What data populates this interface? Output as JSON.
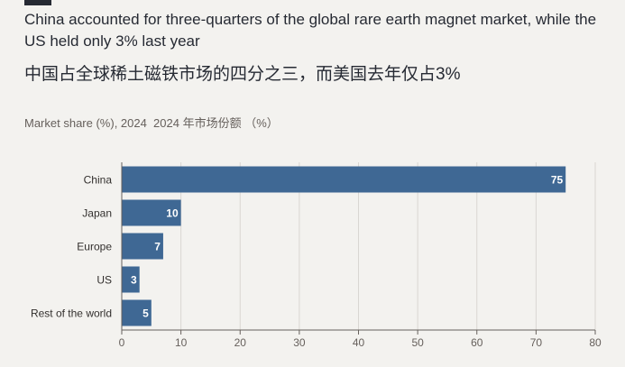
{
  "header": {
    "title_en": "China accounted for three-quarters of the global rare earth magnet market, while the US held only 3% last year",
    "title_zh": "中国占全球稀土磁铁市场的四分之三，而美国去年仅占3%",
    "subtitle": "Market share (%), 2024  2024 年市场份额 （%）"
  },
  "colors": {
    "bar": "#3f6894",
    "background": "#f3f2ef",
    "grid": "#d9d6d2",
    "axis": "#66605c"
  },
  "chart_data": {
    "type": "bar",
    "orientation": "horizontal",
    "categories": [
      "China",
      "Japan",
      "Europe",
      "US",
      "Rest of the world"
    ],
    "values": [
      75,
      10,
      7,
      3,
      5
    ],
    "value_labels": [
      "75",
      "10",
      "7",
      "3",
      "5"
    ],
    "xlim": [
      0,
      80
    ],
    "xticks": [
      0,
      10,
      20,
      30,
      40,
      50,
      60,
      70,
      80
    ],
    "xtick_labels": [
      "0",
      "10",
      "20",
      "30",
      "40",
      "50",
      "60",
      "70",
      "80"
    ],
    "title": "China accounted for three-quarters of the global rare earth magnet market, while the US held only 3% last year",
    "subtitle": "Market share (%), 2024  2024 年市场份额 （%）",
    "xlabel": "",
    "ylabel": "",
    "grid": true
  }
}
